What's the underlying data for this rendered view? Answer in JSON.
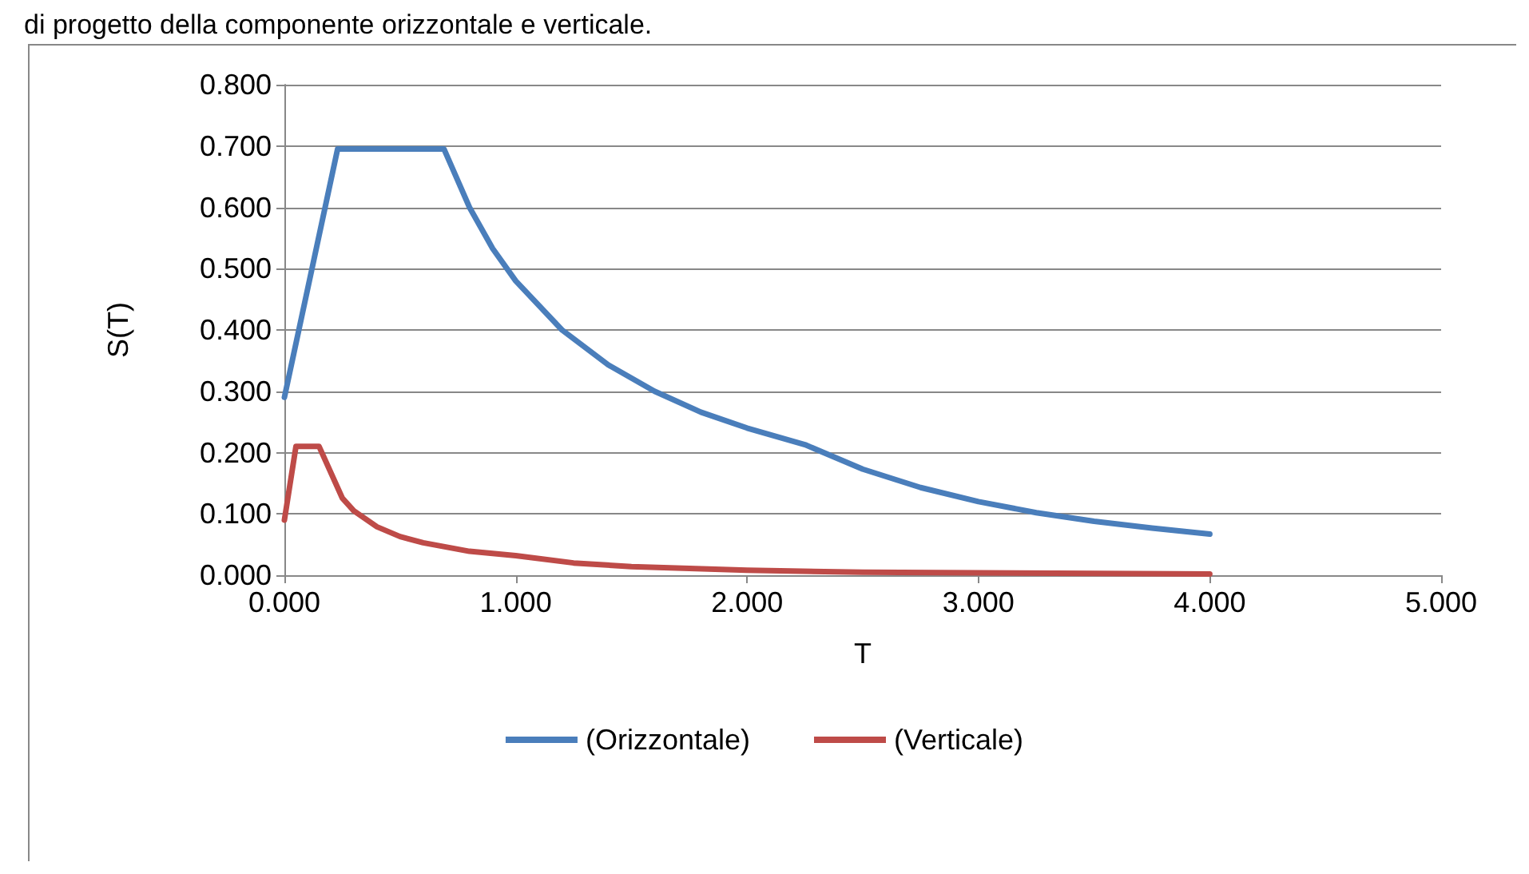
{
  "chart_data": {
    "type": "line",
    "title": "di progetto della componente orizzontale e verticale.",
    "xlabel": "T",
    "ylabel": "S(T)",
    "xlim": [
      0,
      5
    ],
    "xticks": [
      {
        "value": 0,
        "label": "0.000"
      },
      {
        "value": 1,
        "label": "1.000"
      },
      {
        "value": 2,
        "label": "2.000"
      },
      {
        "value": 3,
        "label": "3.000"
      },
      {
        "value": 4,
        "label": "4.000"
      },
      {
        "value": 5,
        "label": "5.000"
      }
    ],
    "ylim": [
      0,
      0.8
    ],
    "yticks": [
      {
        "value": 0,
        "label": "0.000"
      },
      {
        "value": 0.1,
        "label": "0.100"
      },
      {
        "value": 0.2,
        "label": "0.200"
      },
      {
        "value": 0.3,
        "label": "0.300"
      },
      {
        "value": 0.4,
        "label": "0.400"
      },
      {
        "value": 0.5,
        "label": "0.500"
      },
      {
        "value": 0.6,
        "label": "0.600"
      },
      {
        "value": 0.7,
        "label": "0.700"
      },
      {
        "value": 0.8,
        "label": "0.800"
      }
    ],
    "grid": "y",
    "legend": "bottom",
    "marker": "none",
    "line_style": "solid",
    "series": [
      {
        "name": "(Orizzontale)",
        "color": "#4a7ebb",
        "x": [
          0,
          0.23,
          0.69,
          0.8,
          0.9,
          1.0,
          1.2,
          1.4,
          1.6,
          1.8,
          2.0,
          2.25,
          2.5,
          2.75,
          3.0,
          3.25,
          3.5,
          3.75,
          4.0
        ],
        "values": [
          0.29,
          0.695,
          0.695,
          0.6,
          0.533,
          0.48,
          0.4,
          0.343,
          0.3,
          0.266,
          0.24,
          0.213,
          0.173,
          0.143,
          0.12,
          0.102,
          0.088,
          0.077,
          0.067
        ]
      },
      {
        "name": "(Verticale)",
        "color": "#be4b48",
        "x": [
          0,
          0.05,
          0.15,
          0.25,
          0.3,
          0.4,
          0.5,
          0.6,
          0.8,
          1.0,
          1.25,
          1.5,
          2.0,
          2.5,
          3.0,
          3.5,
          4.0
        ],
        "values": [
          0.09,
          0.21,
          0.21,
          0.126,
          0.105,
          0.079,
          0.063,
          0.053,
          0.039,
          0.032,
          0.02,
          0.014,
          0.008,
          0.005,
          0.004,
          0.003,
          0.002
        ]
      }
    ]
  }
}
